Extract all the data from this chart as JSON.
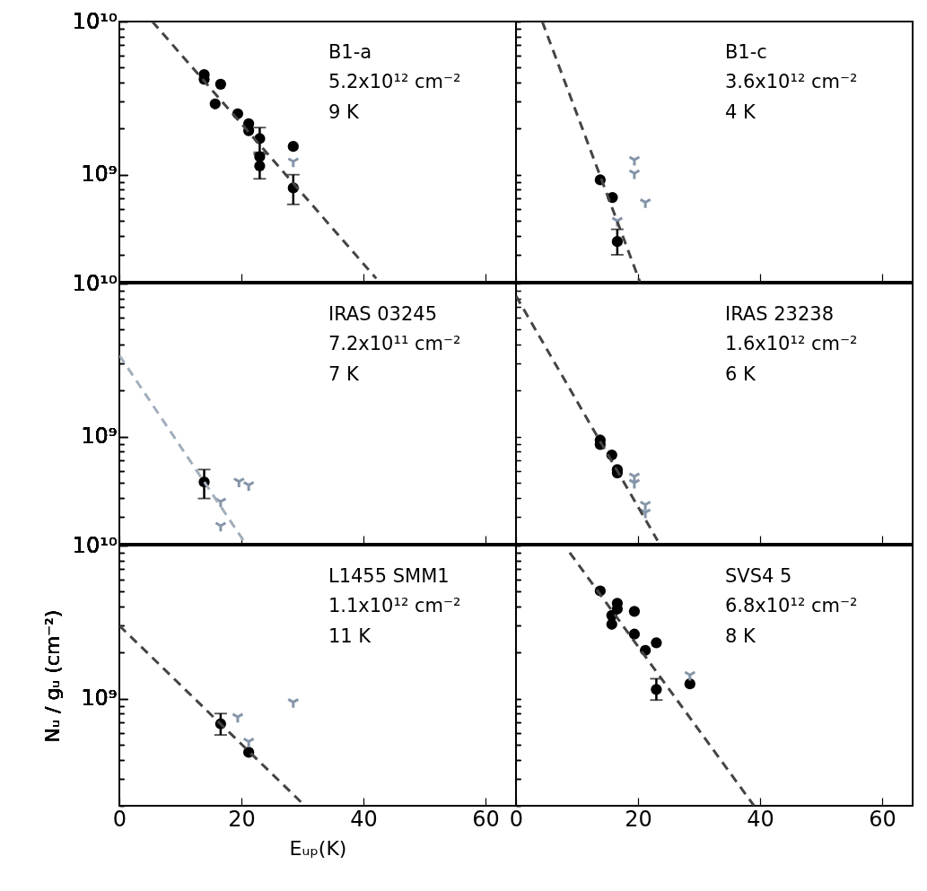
{
  "chart_data": [
    {
      "type": "scatter",
      "tick_labels": "y",
      "xlim": [
        0,
        65
      ],
      "xticks": [
        0,
        20,
        40,
        60
      ],
      "ylim": [
        200000000.0,
        10000000000.0
      ],
      "log": "y",
      "grid": false,
      "yticks": [
        {
          "value": 200000000.0,
          "label": null
        },
        {
          "value": 300000000.0,
          "label": null
        },
        {
          "value": 400000000.0,
          "label": null
        },
        {
          "value": 500000000.0,
          "label": null
        },
        {
          "value": 600000000.0,
          "label": null
        },
        {
          "value": 700000000.0,
          "label": null
        },
        {
          "value": 800000000.0,
          "label": null
        },
        {
          "value": 900000000.0,
          "label": null
        },
        {
          "value": 1000000000.0,
          "label": "10⁹"
        },
        {
          "value": 2000000000.0,
          "label": null
        },
        {
          "value": 3000000000.0,
          "label": null
        },
        {
          "value": 4000000000.0,
          "label": null
        },
        {
          "value": 5000000000.0,
          "label": null
        },
        {
          "value": 6000000000.0,
          "label": null
        },
        {
          "value": 7000000000.0,
          "label": null
        },
        {
          "value": 8000000000.0,
          "label": null
        },
        {
          "value": 9000000000.0,
          "label": null
        },
        {
          "value": 10000000000.0,
          "label": "10¹⁰"
        }
      ],
      "annotations": [
        "B1-a",
        "5.2x10¹²  cm⁻²",
        "9 K"
      ],
      "series": [
        {
          "type": "scatter",
          "marker": "circle",
          "color": "#000000",
          "x": [
            13.9,
            13.9,
            16.6,
            15.7,
            19.4,
            21.2,
            21.2,
            23.0,
            23.0,
            23.0,
            28.5,
            28.5
          ],
          "values": [
            4500000000.0,
            4200000000.0,
            3900000000.0,
            2900000000.0,
            2500000000.0,
            2150000000.0,
            1940000000.0,
            1720000000.0,
            1310000000.0,
            1140000000.0,
            1530000000.0,
            820000000.0
          ],
          "errors": [
            null,
            null,
            null,
            null,
            null,
            null,
            null,
            [
              1400000000.0,
              2030000000.0
            ],
            null,
            [
              940000000.0,
              1360000000.0
            ],
            null,
            [
              640000000.0,
              1000000000.0
            ]
          ]
        },
        {
          "type": "scatter",
          "marker": "cross",
          "color": "#8595a8",
          "x": [
            28.5
          ],
          "values": [
            1220000000.0
          ]
        },
        {
          "type": "line",
          "line_style": "dashed",
          "color": "#444444",
          "x": [
            5.4,
            42.1
          ],
          "values": [
            10000000000.0,
            210000000.0
          ]
        }
      ]
    },
    {
      "type": "scatter",
      "tick_labels": false,
      "xlim": [
        0,
        65
      ],
      "xticks": [
        0,
        20,
        40,
        60
      ],
      "ylim": [
        200000000.0,
        10000000000.0
      ],
      "log": "y",
      "grid": false,
      "yticks": [
        {
          "value": 200000000.0,
          "label": null
        },
        {
          "value": 300000000.0,
          "label": null
        },
        {
          "value": 400000000.0,
          "label": null
        },
        {
          "value": 500000000.0,
          "label": null
        },
        {
          "value": 600000000.0,
          "label": null
        },
        {
          "value": 700000000.0,
          "label": null
        },
        {
          "value": 800000000.0,
          "label": null
        },
        {
          "value": 900000000.0,
          "label": null
        },
        {
          "value": 1000000000.0,
          "label": null
        },
        {
          "value": 2000000000.0,
          "label": null
        },
        {
          "value": 3000000000.0,
          "label": null
        },
        {
          "value": 4000000000.0,
          "label": null
        },
        {
          "value": 5000000000.0,
          "label": null
        },
        {
          "value": 6000000000.0,
          "label": null
        },
        {
          "value": 7000000000.0,
          "label": null
        },
        {
          "value": 8000000000.0,
          "label": null
        },
        {
          "value": 9000000000.0,
          "label": null
        },
        {
          "value": 10000000000.0,
          "label": null
        }
      ],
      "annotations": [
        "B1-c",
        "3.6x10¹²  cm⁻²",
        "4 K"
      ],
      "series": [
        {
          "type": "scatter",
          "marker": "circle",
          "color": "#000000",
          "x": [
            13.8,
            15.8,
            16.6
          ],
          "values": [
            925000000.0,
            710000000.0,
            366000000.0
          ],
          "errors": [
            null,
            null,
            [
              300000000.0,
              440000000.0
            ]
          ]
        },
        {
          "type": "scatter",
          "marker": "cross",
          "color": "#8595a8",
          "x": [
            19.4,
            19.4,
            21.2,
            16.6
          ],
          "values": [
            1250000000.0,
            1020000000.0,
            660000000.0,
            500000000.0
          ]
        },
        {
          "type": "line",
          "line_style": "dashed",
          "color": "#444444",
          "x": [
            4.3,
            20.3
          ],
          "values": [
            10000000000.0,
            200000000.0
          ]
        }
      ]
    },
    {
      "type": "scatter",
      "tick_labels": "y",
      "xlim": [
        0,
        65
      ],
      "xticks": [
        0,
        20,
        40,
        60
      ],
      "ylim": [
        200000000.0,
        10000000000.0
      ],
      "log": "y",
      "grid": false,
      "yticks": [
        {
          "value": 200000000.0,
          "label": null
        },
        {
          "value": 300000000.0,
          "label": null
        },
        {
          "value": 400000000.0,
          "label": null
        },
        {
          "value": 500000000.0,
          "label": null
        },
        {
          "value": 600000000.0,
          "label": null
        },
        {
          "value": 700000000.0,
          "label": null
        },
        {
          "value": 800000000.0,
          "label": null
        },
        {
          "value": 900000000.0,
          "label": null
        },
        {
          "value": 1000000000.0,
          "label": "10⁹"
        },
        {
          "value": 2000000000.0,
          "label": null
        },
        {
          "value": 3000000000.0,
          "label": null
        },
        {
          "value": 4000000000.0,
          "label": null
        },
        {
          "value": 5000000000.0,
          "label": null
        },
        {
          "value": 6000000000.0,
          "label": null
        },
        {
          "value": 7000000000.0,
          "label": null
        },
        {
          "value": 8000000000.0,
          "label": null
        },
        {
          "value": 9000000000.0,
          "label": null
        },
        {
          "value": 10000000000.0,
          "label": "10¹⁰"
        }
      ],
      "annotations": [
        "IRAS 03245",
        "7.2x10¹¹  cm⁻²",
        "7 K"
      ],
      "series": [
        {
          "type": "scatter",
          "marker": "circle",
          "color": "#000000",
          "x": [
            13.9
          ],
          "values": [
            506000000.0
          ],
          "errors": [
            [
              395000000.0,
              610000000.0
            ]
          ]
        },
        {
          "type": "scatter",
          "marker": "cross",
          "color": "#8595a8",
          "x": [
            16.6,
            16.6,
            19.6,
            21.2
          ],
          "values": [
            377000000.0,
            262000000.0,
            510000000.0,
            483000000.0
          ]
        },
        {
          "type": "line",
          "line_style": "dashed",
          "color": "#a3aebb",
          "x": [
            0,
            20.7
          ],
          "values": [
            3400000000.0,
            200000000.0
          ]
        }
      ]
    },
    {
      "type": "scatter",
      "tick_labels": false,
      "xlim": [
        0,
        65
      ],
      "xticks": [
        0,
        20,
        40,
        60
      ],
      "ylim": [
        200000000.0,
        10000000000.0
      ],
      "log": "y",
      "grid": false,
      "yticks": [
        {
          "value": 200000000.0,
          "label": null
        },
        {
          "value": 300000000.0,
          "label": null
        },
        {
          "value": 400000000.0,
          "label": null
        },
        {
          "value": 500000000.0,
          "label": null
        },
        {
          "value": 600000000.0,
          "label": null
        },
        {
          "value": 700000000.0,
          "label": null
        },
        {
          "value": 800000000.0,
          "label": null
        },
        {
          "value": 900000000.0,
          "label": null
        },
        {
          "value": 1000000000.0,
          "label": null
        },
        {
          "value": 2000000000.0,
          "label": null
        },
        {
          "value": 3000000000.0,
          "label": null
        },
        {
          "value": 4000000000.0,
          "label": null
        },
        {
          "value": 5000000000.0,
          "label": null
        },
        {
          "value": 6000000000.0,
          "label": null
        },
        {
          "value": 7000000000.0,
          "label": null
        },
        {
          "value": 8000000000.0,
          "label": null
        },
        {
          "value": 9000000000.0,
          "label": null
        },
        {
          "value": 10000000000.0,
          "label": null
        }
      ],
      "annotations": [
        "IRAS 23238",
        "1.6x10¹²  cm⁻²",
        "6 K"
      ],
      "series": [
        {
          "type": "scatter",
          "marker": "circle",
          "color": "#000000",
          "x": [
            13.8,
            13.8,
            15.7,
            16.6,
            16.6
          ],
          "values": [
            950000000.0,
            890000000.0,
            760000000.0,
            610000000.0,
            580000000.0
          ]
        },
        {
          "type": "scatter",
          "marker": "cross",
          "color": "#8595a8",
          "x": [
            19.4,
            19.4,
            21.2,
            21.2
          ],
          "values": [
            550000000.0,
            500000000.0,
            360000000.0,
            320000000.0
          ]
        },
        {
          "type": "line",
          "line_style": "dashed",
          "color": "#444444",
          "x": [
            0,
            23.2
          ],
          "values": [
            8300000000.0,
            210000000.0
          ]
        }
      ]
    },
    {
      "type": "scatter",
      "xlabel": "Eᵤₚ(K)",
      "ylabel": "Nᵤ / gᵤ (cm⁻²)",
      "xlim": [
        0,
        65
      ],
      "xticks": [
        0,
        20,
        40,
        60
      ],
      "ylim": [
        200000000.0,
        10000000000.0
      ],
      "log": "y",
      "grid": false,
      "yticks": [
        {
          "value": 200000000.0,
          "label": null
        },
        {
          "value": 300000000.0,
          "label": null
        },
        {
          "value": 400000000.0,
          "label": null
        },
        {
          "value": 500000000.0,
          "label": null
        },
        {
          "value": 600000000.0,
          "label": null
        },
        {
          "value": 700000000.0,
          "label": null
        },
        {
          "value": 800000000.0,
          "label": null
        },
        {
          "value": 900000000.0,
          "label": null
        },
        {
          "value": 1000000000.0,
          "label": "10⁹"
        },
        {
          "value": 2000000000.0,
          "label": null
        },
        {
          "value": 3000000000.0,
          "label": null
        },
        {
          "value": 4000000000.0,
          "label": null
        },
        {
          "value": 5000000000.0,
          "label": null
        },
        {
          "value": 6000000000.0,
          "label": null
        },
        {
          "value": 7000000000.0,
          "label": null
        },
        {
          "value": 8000000000.0,
          "label": null
        },
        {
          "value": 9000000000.0,
          "label": null
        },
        {
          "value": 10000000000.0,
          "label": "10¹⁰"
        }
      ],
      "annotations": [
        "L1455 SMM1",
        "1.1x10¹²  cm⁻²",
        "11 K"
      ],
      "series": [
        {
          "type": "scatter",
          "marker": "circle",
          "color": "#000000",
          "x": [
            16.6,
            21.2
          ],
          "values": [
            685000000.0,
            447000000.0
          ],
          "errors": [
            [
              580000000.0,
              800000000.0
            ],
            null
          ]
        },
        {
          "type": "scatter",
          "marker": "cross",
          "color": "#8595a8",
          "x": [
            19.4,
            21.2,
            28.5
          ],
          "values": [
            760000000.0,
            525000000.0,
            950000000.0
          ]
        },
        {
          "type": "line",
          "line_style": "dashed",
          "color": "#444444",
          "x": [
            0,
            30.4
          ],
          "values": [
            3000000000.0,
            200000000.0
          ]
        }
      ]
    },
    {
      "type": "scatter",
      "tick_labels": "x",
      "xlim": [
        0,
        65
      ],
      "xticks": [
        0,
        20,
        40,
        60
      ],
      "ylim": [
        200000000.0,
        10000000000.0
      ],
      "log": "y",
      "grid": false,
      "yticks": [
        {
          "value": 200000000.0,
          "label": null
        },
        {
          "value": 300000000.0,
          "label": null
        },
        {
          "value": 400000000.0,
          "label": null
        },
        {
          "value": 500000000.0,
          "label": null
        },
        {
          "value": 600000000.0,
          "label": null
        },
        {
          "value": 700000000.0,
          "label": null
        },
        {
          "value": 800000000.0,
          "label": null
        },
        {
          "value": 900000000.0,
          "label": null
        },
        {
          "value": 1000000000.0,
          "label": null
        },
        {
          "value": 2000000000.0,
          "label": null
        },
        {
          "value": 3000000000.0,
          "label": null
        },
        {
          "value": 4000000000.0,
          "label": null
        },
        {
          "value": 5000000000.0,
          "label": null
        },
        {
          "value": 6000000000.0,
          "label": null
        },
        {
          "value": 7000000000.0,
          "label": null
        },
        {
          "value": 8000000000.0,
          "label": null
        },
        {
          "value": 9000000000.0,
          "label": null
        },
        {
          "value": 10000000000.0,
          "label": null
        }
      ],
      "annotations": [
        "SVS4 5",
        "6.8x10¹²  cm⁻²",
        "8 K"
      ],
      "series": [
        {
          "type": "scatter",
          "marker": "circle",
          "color": "#000000",
          "x": [
            13.8,
            16.6,
            16.6,
            15.7,
            15.7,
            19.4,
            19.4,
            21.2,
            23.0,
            23.0,
            28.5
          ],
          "values": [
            5060000000.0,
            4200000000.0,
            3850000000.0,
            3500000000.0,
            3060000000.0,
            3720000000.0,
            2640000000.0,
            2070000000.0,
            2320000000.0,
            1150000000.0,
            1250000000.0
          ],
          "errors": [
            null,
            null,
            null,
            null,
            null,
            null,
            null,
            null,
            null,
            [
              980000000.0,
              1350000000.0
            ],
            null
          ]
        },
        {
          "type": "scatter",
          "marker": "cross",
          "color": "#8595a8",
          "x": [
            28.5
          ],
          "values": [
            1430000000.0
          ]
        },
        {
          "type": "line",
          "line_style": "dashed",
          "color": "#444444",
          "x": [
            8.8,
            39.0
          ],
          "values": [
            9000000000.0,
            200000000.0
          ]
        }
      ]
    }
  ]
}
